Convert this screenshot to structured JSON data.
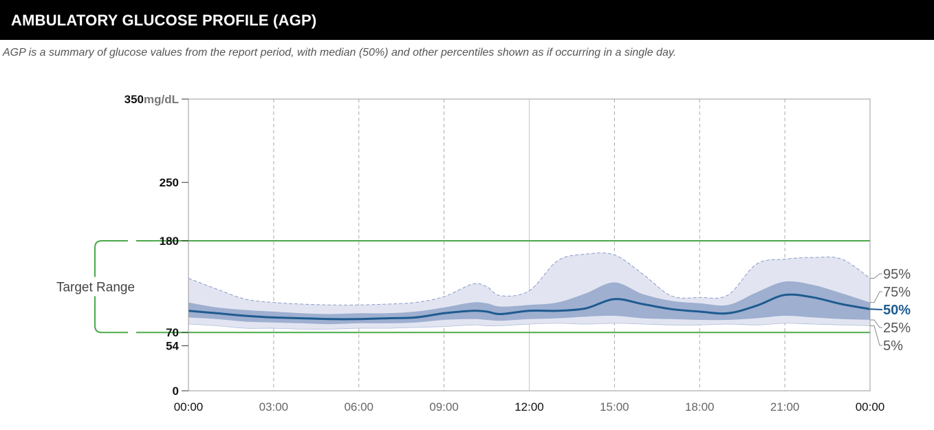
{
  "header": {
    "title": "AMBULATORY GLUCOSE PROFILE (AGP)",
    "subtitle": "AGP is a summary of glucose values from the report period, with median (50%) and other percentiles shown as if occurring in a single day."
  },
  "chart_data": {
    "type": "area",
    "title": "",
    "xlabel": "",
    "ylabel": "",
    "y_unit": "mg/dL",
    "ylim": [
      0,
      350
    ],
    "xlim": [
      0,
      24
    ],
    "y_ticks": [
      {
        "value": 350,
        "label": "350"
      },
      {
        "value": 250,
        "label": "250"
      },
      {
        "value": 180,
        "label": "180"
      },
      {
        "value": 70,
        "label": "70"
      },
      {
        "value": 54,
        "label": "54"
      },
      {
        "value": 0,
        "label": "0"
      }
    ],
    "x_ticks": [
      {
        "value": 0,
        "label": "00:00",
        "bold": true
      },
      {
        "value": 3,
        "label": "03:00",
        "bold": false
      },
      {
        "value": 6,
        "label": "06:00",
        "bold": false
      },
      {
        "value": 9,
        "label": "09:00",
        "bold": false
      },
      {
        "value": 12,
        "label": "12:00",
        "bold": true
      },
      {
        "value": 15,
        "label": "15:00",
        "bold": false
      },
      {
        "value": 18,
        "label": "18:00",
        "bold": false
      },
      {
        "value": 21,
        "label": "21:00",
        "bold": false
      },
      {
        "value": 24,
        "label": "00:00",
        "bold": true
      }
    ],
    "target_range": {
      "label": "Target Range",
      "low": 70,
      "high": 180
    },
    "x": [
      0,
      1,
      2,
      3,
      4,
      5,
      6,
      7,
      8,
      9,
      10,
      10.5,
      11,
      12,
      13,
      14,
      15,
      16,
      17,
      18,
      19,
      20,
      21,
      22,
      23,
      24
    ],
    "series": [
      {
        "name": "95%",
        "values": [
          135,
          122,
          110,
          106,
          104,
          103,
          103,
          104,
          106,
          113,
          128,
          125,
          114,
          120,
          156,
          164,
          163,
          140,
          114,
          112,
          115,
          152,
          158,
          160,
          158,
          135
        ]
      },
      {
        "name": "75%",
        "values": [
          106,
          100,
          97,
          95,
          93,
          92,
          93,
          93,
          95,
          100,
          106,
          105,
          101,
          103,
          106,
          117,
          130,
          116,
          108,
          105,
          103,
          118,
          131,
          127,
          117,
          106
        ]
      },
      {
        "name": "50%",
        "values": [
          96,
          93,
          90,
          88,
          87,
          86,
          86,
          87,
          88,
          93,
          96,
          95,
          92,
          96,
          96,
          99,
          110,
          104,
          98,
          95,
          93,
          102,
          115,
          112,
          104,
          98
        ]
      },
      {
        "name": "25%",
        "values": [
          88,
          86,
          83,
          82,
          81,
          80,
          81,
          81,
          82,
          85,
          86,
          85,
          84,
          86,
          87,
          89,
          90,
          87,
          86,
          85,
          85,
          87,
          90,
          88,
          86,
          85
        ]
      },
      {
        "name": "5%",
        "values": [
          80,
          78,
          75,
          75,
          74,
          74,
          75,
          75,
          76,
          77,
          79,
          78,
          78,
          80,
          81,
          80,
          81,
          80,
          79,
          79,
          80,
          79,
          81,
          80,
          79,
          78
        ]
      }
    ],
    "colors": {
      "band_outer": "#e2e5f1",
      "band_inner": "#9eafd0",
      "median": "#1e5b8f",
      "target": "#4aa84a",
      "outline_dash": "#8a9bc8"
    },
    "grid": true,
    "legend": "right-of-plot"
  }
}
